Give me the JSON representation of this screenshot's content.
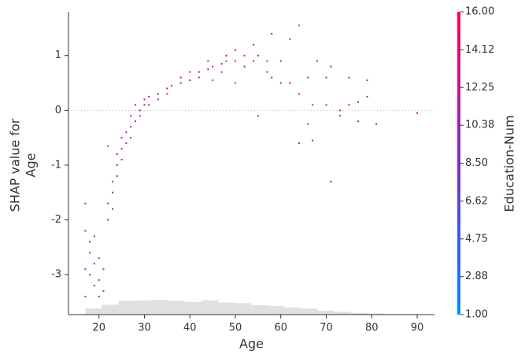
{
  "chart_data": {
    "type": "scatter",
    "xlabel": "Age",
    "ylabel": [
      "SHAP value for",
      "Age"
    ],
    "colorbar_label": "Education-Num",
    "x": [
      17,
      17,
      17,
      17,
      18,
      18,
      18,
      19,
      19,
      19,
      20,
      20,
      20,
      21,
      21,
      22,
      22,
      22,
      23,
      23,
      23,
      24,
      24,
      24,
      25,
      25,
      25,
      26,
      26,
      27,
      27,
      27,
      28,
      28,
      29,
      29,
      30,
      30,
      31,
      31,
      33,
      33,
      35,
      35,
      36,
      38,
      38,
      40,
      40,
      42,
      42,
      44,
      44,
      45,
      45,
      47,
      47,
      48,
      48,
      50,
      50,
      50,
      52,
      52,
      54,
      54,
      55,
      55,
      57,
      57,
      58,
      58,
      60,
      60,
      62,
      62,
      64,
      64,
      64,
      66,
      66,
      67,
      67,
      68,
      70,
      70,
      71,
      71,
      73,
      73,
      75,
      75,
      77,
      77,
      79,
      79,
      81,
      90
    ],
    "values": [
      -2.2,
      -2.9,
      -1.7,
      -3.4,
      -2.4,
      -3.0,
      -2.6,
      -2.8,
      -3.2,
      -2.3,
      -3.1,
      -2.7,
      -3.4,
      -2.9,
      -3.3,
      -1.7,
      -2.0,
      -0.65,
      -1.8,
      -1.3,
      -1.5,
      -1.0,
      -0.8,
      -1.2,
      -0.7,
      -0.9,
      -0.5,
      -0.6,
      -0.4,
      -0.3,
      -0.1,
      -0.5,
      -0.2,
      0.1,
      0.0,
      -0.1,
      0.2,
      0.1,
      0.25,
      0.1,
      0.3,
      0.2,
      0.4,
      0.3,
      0.45,
      0.5,
      0.6,
      0.55,
      0.7,
      0.7,
      0.6,
      0.75,
      0.9,
      0.8,
      0.55,
      0.85,
      0.7,
      1.0,
      0.9,
      0.9,
      1.1,
      0.5,
      1.0,
      0.8,
      0.9,
      1.2,
      1.0,
      -0.1,
      0.9,
      0.7,
      1.4,
      0.6,
      0.5,
      0.9,
      0.5,
      1.3,
      0.3,
      1.55,
      -0.6,
      0.6,
      -0.25,
      -0.55,
      0.1,
      0.9,
      0.1,
      0.6,
      -1.3,
      0.8,
      -0.1,
      0.0,
      0.6,
      0.1,
      -0.2,
      0.15,
      0.25,
      0.55,
      -0.25,
      -0.05
    ],
    "color_values": [
      9,
      7,
      6,
      9,
      10,
      9,
      7,
      9,
      10,
      13,
      10,
      9,
      9,
      10,
      10,
      13,
      10,
      4,
      10,
      13,
      9,
      10,
      13,
      11,
      10,
      14,
      9,
      13,
      10,
      10,
      13,
      9,
      13,
      10,
      14,
      10,
      13,
      9,
      10,
      14,
      13,
      10,
      14,
      9,
      13,
      10,
      14,
      13,
      10,
      14,
      9,
      13,
      10,
      10,
      3,
      14,
      9,
      13,
      10,
      13,
      14,
      1,
      10,
      13,
      14,
      13,
      10,
      13,
      13,
      9,
      14,
      10,
      13,
      10,
      13,
      3,
      10,
      1,
      9,
      10,
      13,
      13,
      10,
      9,
      13,
      10,
      13,
      10,
      10,
      13,
      13,
      10,
      13,
      10,
      13,
      10,
      10,
      13
    ],
    "color_range": [
      1,
      16
    ],
    "colors": [
      "#008bfb",
      "#7a2ed0",
      "#ff0052"
    ],
    "hist_bins": [
      17,
      20.65,
      24.3,
      27.95,
      31.6,
      35.25,
      38.9,
      42.55,
      46.2,
      49.85,
      53.5,
      57.15,
      60.8,
      64.45,
      68.1,
      71.75,
      75.4,
      79.05,
      82.7,
      86.35,
      90
    ],
    "hist_tops": [
      -3.62,
      -3.55,
      -3.48,
      -3.47,
      -3.46,
      -3.48,
      -3.5,
      -3.47,
      -3.51,
      -3.52,
      -3.56,
      -3.57,
      -3.6,
      -3.62,
      -3.66,
      -3.68,
      -3.7,
      -3.71,
      -3.72,
      -3.72
    ],
    "zero_line": 0,
    "xlim": [
      13.3,
      93.8
    ],
    "xticks": [
      20,
      30,
      40,
      50,
      60,
      70,
      80,
      90
    ],
    "ylim": [
      -3.73,
      1.8
    ],
    "yticks": [
      -3,
      -2,
      -1,
      0,
      1
    ],
    "colorbar_ticks": [
      {
        "value": 1,
        "label": "1.00"
      },
      {
        "value": 2.88,
        "label": "2.88"
      },
      {
        "value": 4.75,
        "label": "4.75"
      },
      {
        "value": 6.62,
        "label": "6.62"
      },
      {
        "value": 8.5,
        "label": "8.50"
      },
      {
        "value": 10.38,
        "label": "10.38"
      },
      {
        "value": 12.25,
        "label": "12.25"
      },
      {
        "value": 14.12,
        "label": "14.12"
      },
      {
        "value": 16,
        "label": "16.00"
      }
    ]
  }
}
